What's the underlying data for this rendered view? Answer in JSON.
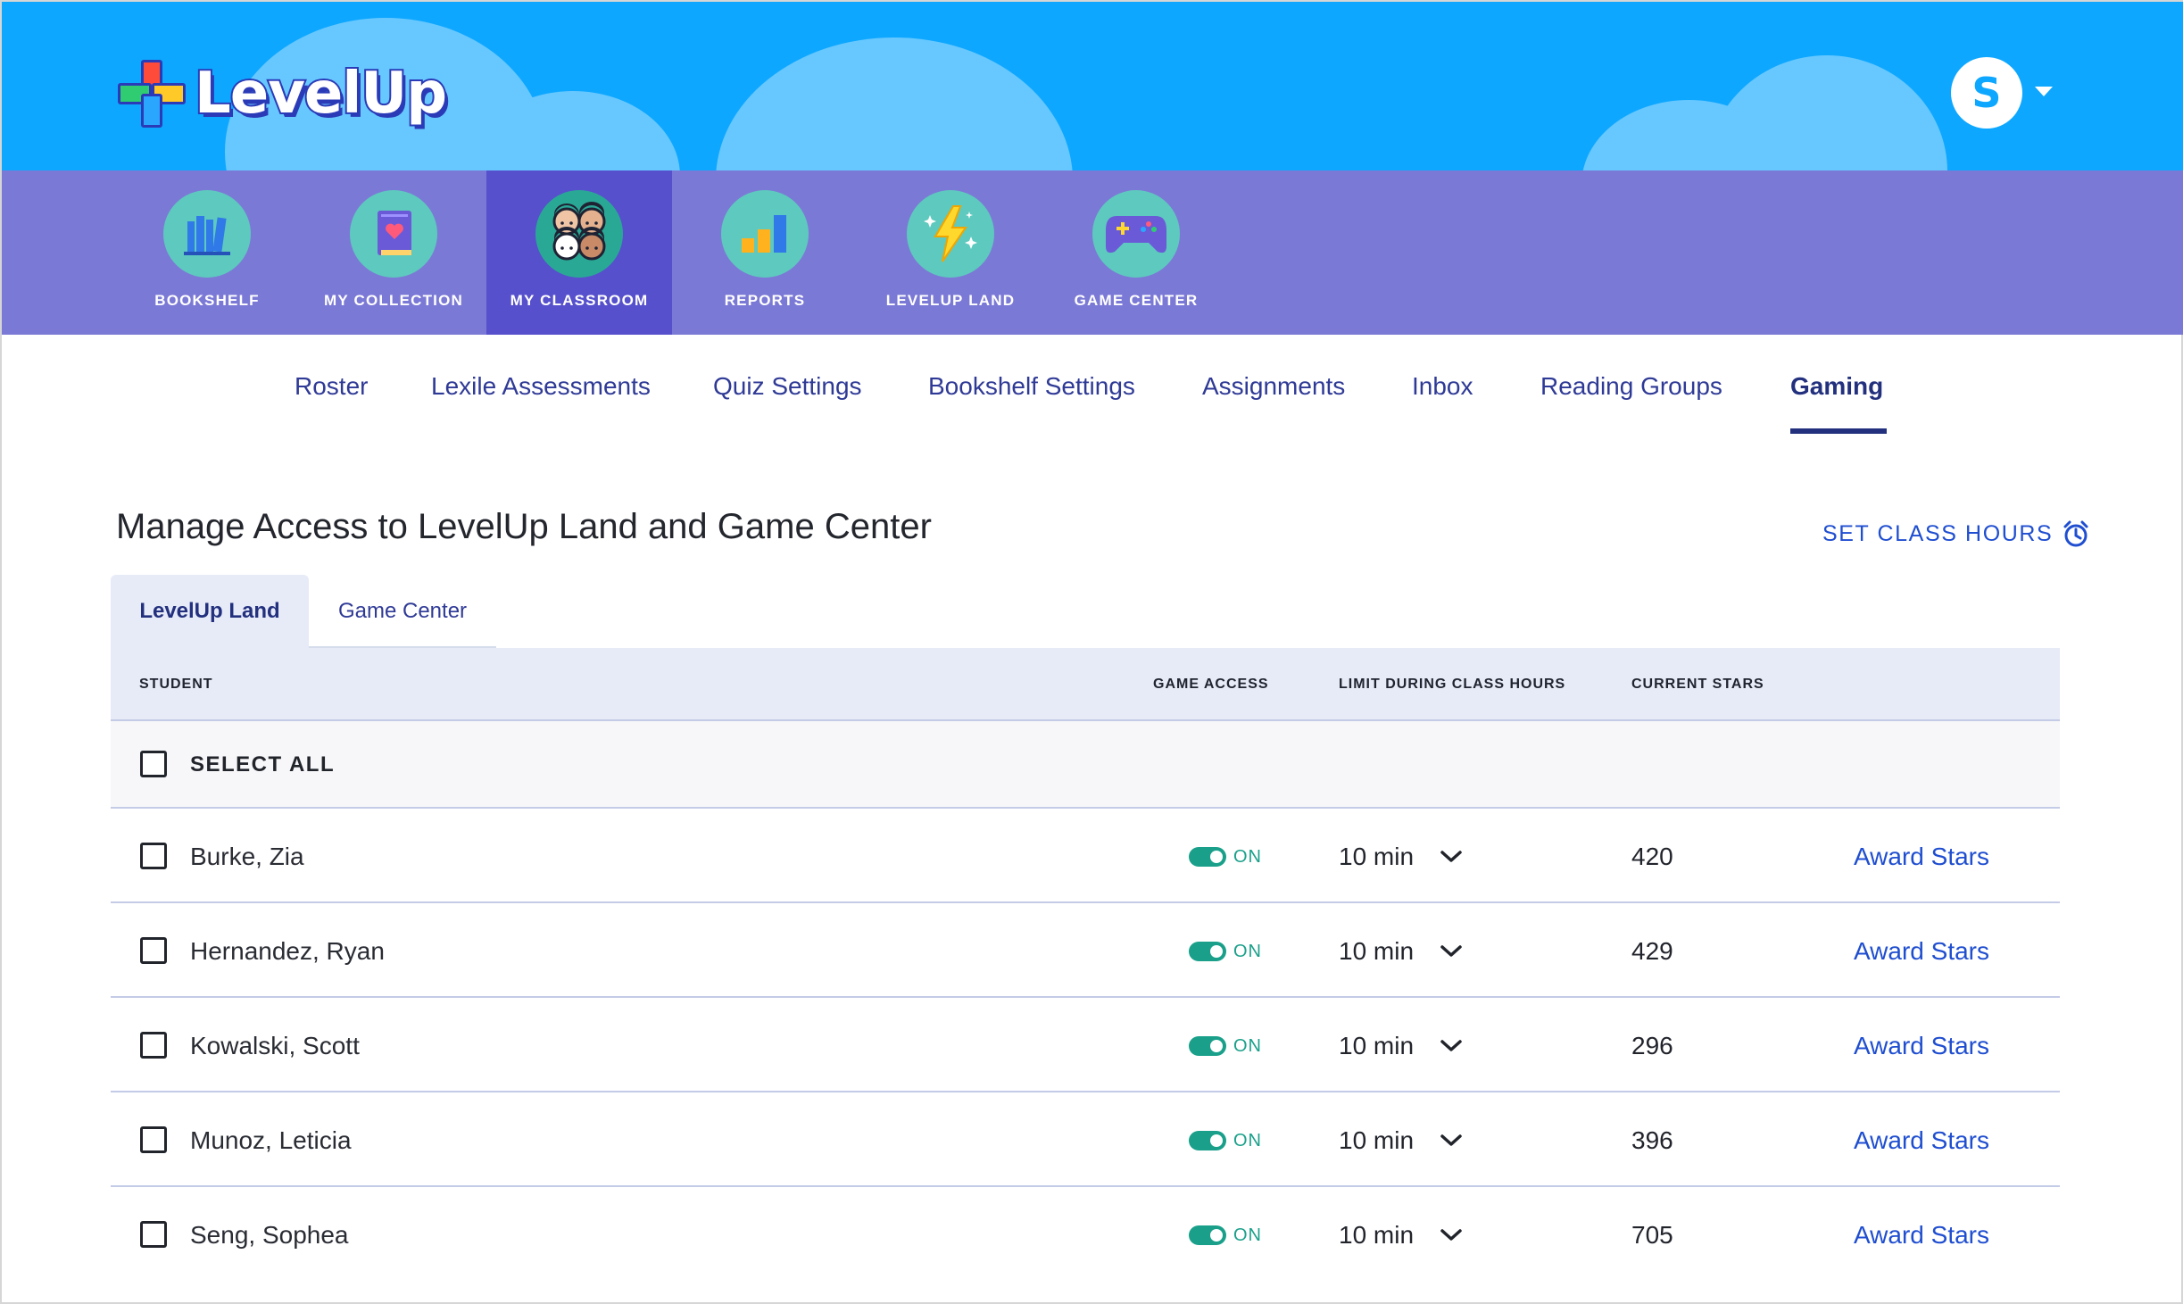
{
  "brand": {
    "name": "LevelUp"
  },
  "user": {
    "initial": "S"
  },
  "main_nav": [
    {
      "label": "BOOKSHELF",
      "icon": "bookshelf-icon"
    },
    {
      "label": "MY COLLECTION",
      "icon": "book-heart-icon"
    },
    {
      "label": "MY CLASSROOM",
      "icon": "classroom-faces-icon",
      "active": true
    },
    {
      "label": "REPORTS",
      "icon": "bar-chart-icon"
    },
    {
      "label": "LEVELUP LAND",
      "icon": "lightning-icon"
    },
    {
      "label": "GAME CENTER",
      "icon": "gamepad-icon"
    }
  ],
  "sub_nav": [
    {
      "label": "Roster"
    },
    {
      "label": "Lexile Assessments"
    },
    {
      "label": "Quiz Settings"
    },
    {
      "label": "Bookshelf Settings"
    },
    {
      "label": "Assignments"
    },
    {
      "label": "Inbox"
    },
    {
      "label": "Reading Groups"
    },
    {
      "label": "Gaming",
      "active": true
    }
  ],
  "page": {
    "title": "Manage Access to LevelUp Land and Game Center",
    "set_class_hours": "SET CLASS HOURS",
    "tabs": [
      {
        "label": "LevelUp Land",
        "active": true
      },
      {
        "label": "Game Center"
      }
    ]
  },
  "table": {
    "columns": {
      "student": "STUDENT",
      "game_access": "GAME ACCESS",
      "limit": "LIMIT DURING CLASS HOURS",
      "stars": "CURRENT STARS"
    },
    "select_all": "SELECT ALL",
    "rows": [
      {
        "name": "Burke, Zia",
        "access": "ON",
        "limit": "10 min",
        "stars": "420",
        "action": "Award Stars"
      },
      {
        "name": "Hernandez, Ryan",
        "access": "ON",
        "limit": "10 min",
        "stars": "429",
        "action": "Award Stars"
      },
      {
        "name": "Kowalski, Scott",
        "access": "ON",
        "limit": "10 min",
        "stars": "296",
        "action": "Award Stars"
      },
      {
        "name": "Munoz, Leticia",
        "access": "ON",
        "limit": "10 min",
        "stars": "396",
        "action": "Award Stars"
      },
      {
        "name": "Seng, Sophea",
        "access": "ON",
        "limit": "10 min",
        "stars": "705",
        "action": "Award Stars"
      }
    ]
  },
  "colors": {
    "header_blue": "#0ea7ff",
    "nav_purple": "#7b79d6",
    "nav_active": "#5650cc",
    "link_blue": "#1f4ed0",
    "toggle_green": "#1aa08a"
  }
}
